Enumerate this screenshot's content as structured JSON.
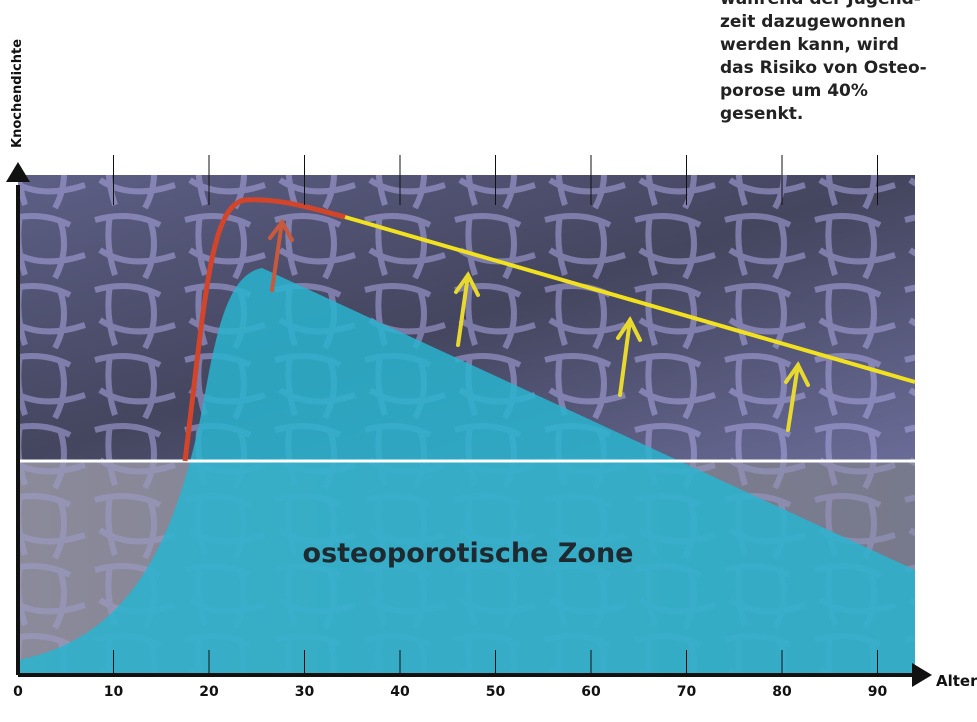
{
  "annotation": [
    "während der Jugend-",
    "zeit dazugewonnen",
    "werden kann, wird",
    "das Risiko von Osteo-",
    "porose um 40%",
    "gesenkt."
  ],
  "axis": {
    "x_label": "Alter",
    "y_label": "Knochendichte",
    "xticks": [
      0,
      10,
      20,
      30,
      40,
      50,
      60,
      70,
      80,
      90
    ]
  },
  "zone_label": "osteoporotische Zone"
}
